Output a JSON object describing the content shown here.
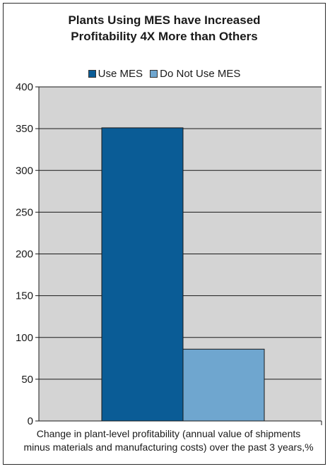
{
  "chart_data": {
    "type": "bar",
    "title": [
      "Plants Using MES have Increased",
      "Profitability 4X More than Others"
    ],
    "xlabel": [
      "Change in plant-level profitability (annual value of shipments",
      "minus materials and manufacturing costs) over the past 3 years,%"
    ],
    "ylabel": "",
    "ylim": [
      0,
      400
    ],
    "yticks": [
      0,
      50,
      100,
      150,
      200,
      250,
      300,
      350,
      400
    ],
    "grid": true,
    "legend_position": "top-center",
    "series": [
      {
        "name": "Use MES",
        "values": [
          351
        ],
        "color": "#0a5c96"
      },
      {
        "name": "Do Not Use MES",
        "values": [
          86
        ],
        "color": "#6fa6cf"
      }
    ],
    "plot_background": "#d4d4d4"
  }
}
